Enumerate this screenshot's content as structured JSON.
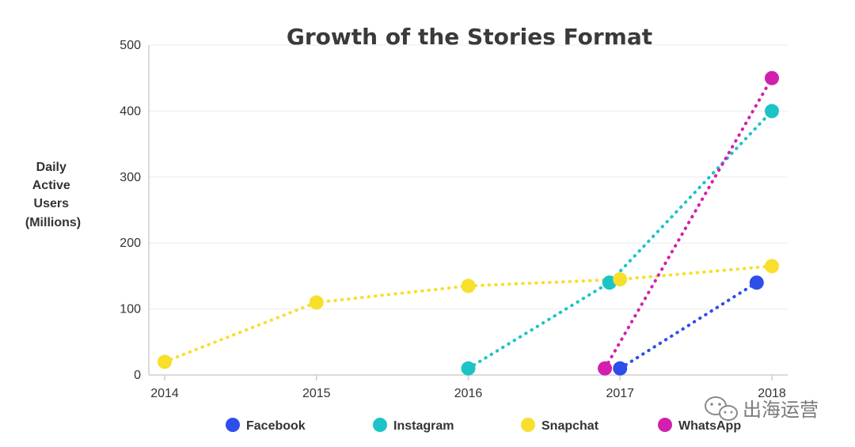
{
  "watermark": {
    "text": "出海运营",
    "icon": "wechat-icon"
  },
  "chart_data": {
    "type": "line",
    "title": "Growth of the Stories Format",
    "xlabel": "",
    "ylabel": [
      "Daily",
      "Active",
      "Users",
      "(Millions)"
    ],
    "x_ticks": [
      "2014",
      "2015",
      "2016",
      "2017",
      "2018"
    ],
    "y_ticks": [
      "500",
      "400",
      "300",
      "200",
      "100",
      "0"
    ],
    "xlim": [
      2014,
      2018
    ],
    "ylim": [
      0,
      500
    ],
    "grid": true,
    "legend_position": "bottom",
    "line_style": "dotted",
    "series": [
      {
        "name": "Facebook",
        "color": "#2d4ee8",
        "points": [
          [
            2017,
            10
          ],
          [
            2017.9,
            140
          ]
        ]
      },
      {
        "name": "Instagram",
        "color": "#1cc4c8",
        "points": [
          [
            2016,
            10
          ],
          [
            2016.93,
            140
          ],
          [
            2018,
            400
          ]
        ]
      },
      {
        "name": "Snapchat",
        "color": "#f7df2c",
        "points": [
          [
            2014,
            20
          ],
          [
            2015,
            110
          ],
          [
            2016,
            135
          ],
          [
            2017,
            145
          ],
          [
            2018,
            165
          ]
        ]
      },
      {
        "name": "WhatsApp",
        "color": "#d31fae",
        "points": [
          [
            2016.9,
            10
          ],
          [
            2018,
            450
          ]
        ]
      }
    ]
  }
}
